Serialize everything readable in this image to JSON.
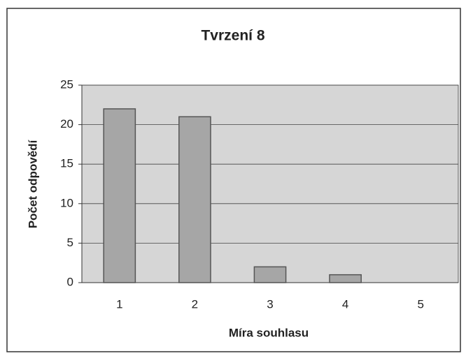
{
  "chart_data": {
    "type": "bar",
    "title": "Tvrzení 8",
    "x_label": "Míra souhlasu",
    "y_label": "Počet odpovědí",
    "categories": [
      "1",
      "2",
      "3",
      "4",
      "5"
    ],
    "values": [
      22,
      21,
      2,
      1,
      0
    ],
    "color": "#a6a6a6",
    "ylim": [
      0,
      25
    ],
    "yticks": [
      0,
      5,
      10,
      15,
      20,
      25
    ],
    "grid": true
  }
}
